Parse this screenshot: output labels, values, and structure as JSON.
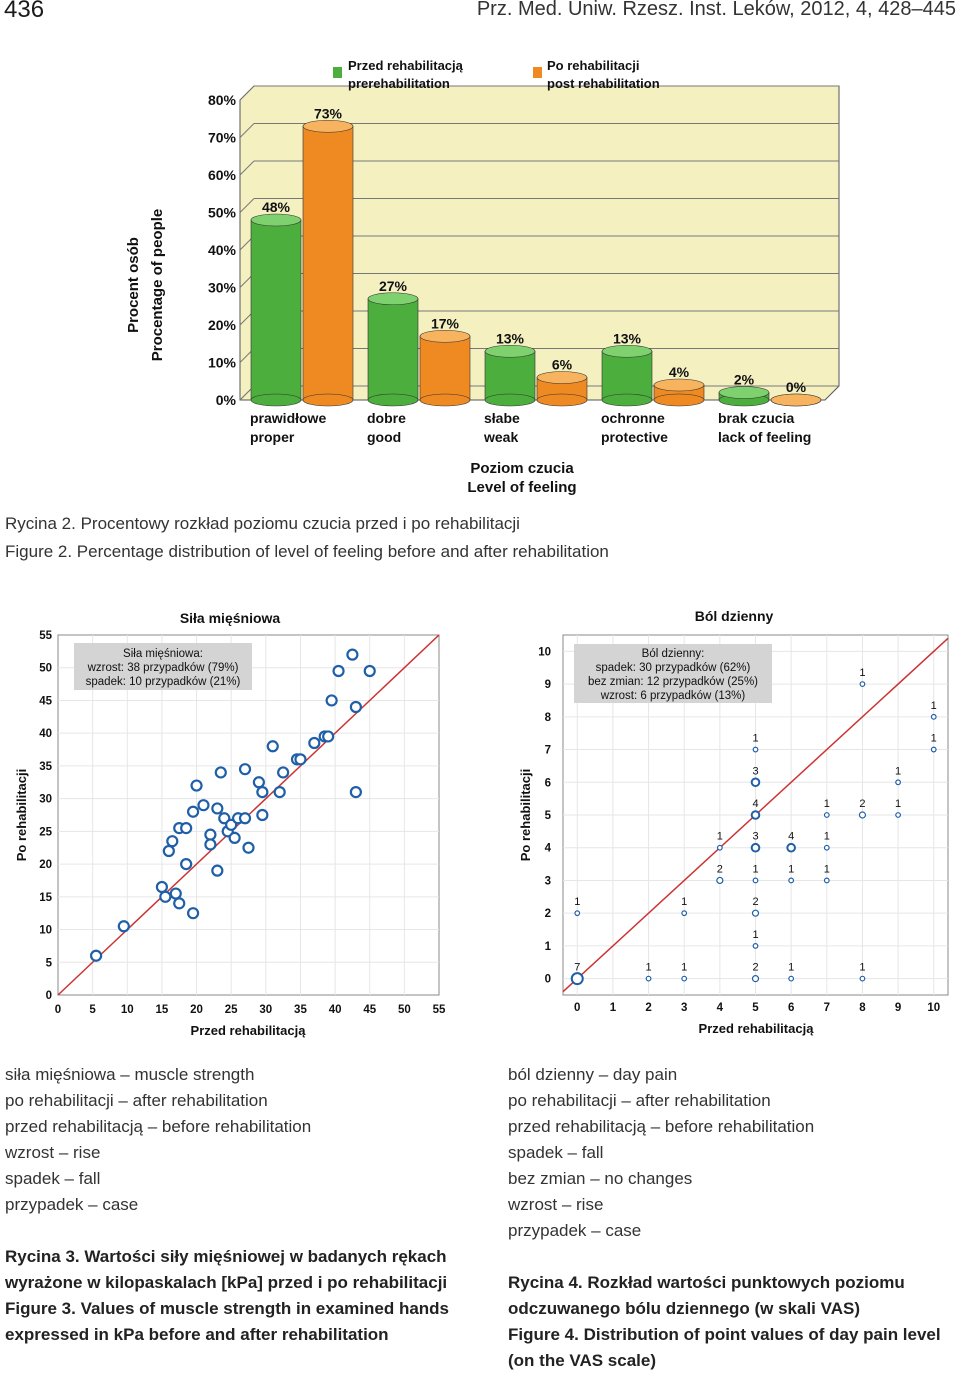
{
  "header": {
    "page_number": "436",
    "journal": "Prz. Med. Uniw. Rzesz. Inst. Leków, 2012, 4, 428–445"
  },
  "figure2": {
    "caption_pl": "Rycina 2. Procentowy rozkład poziomu czucia przed i po rehabilitacji",
    "caption_en": "Figure 2. Percentage distribution of level of feeling before and after rehabilitation"
  },
  "figure3": {
    "caption_lines": [
      "Rycina 3. Wartości siły mięśniowej w badanych rękach",
      "wyrażone w kilopaskalach [kPa] przed i po rehabilitacji",
      "Figure 3. Values of muscle strength in examined hands",
      "expressed in kPa before and after rehabilitation"
    ],
    "glossary": [
      "siła mięśniowa – muscle strength",
      "po rehabilitacji – after rehabilitation",
      "przed rehabilitacją – before rehabilitation",
      "wzrost – rise",
      "spadek – fall",
      "przypadek – case"
    ]
  },
  "figure4": {
    "caption_lines": [
      "Rycina 4. Rozkład wartości punktowych poziomu",
      "odczuwanego bólu dziennego (w skali VAS)",
      "Figure 4. Distribution of point values of day pain level",
      "(on the VAS scale)"
    ],
    "glossary": [
      "ból dzienny – day pain",
      "po rehabilitacji – after rehabilitation",
      "przed rehabilitacją – before rehabilitation",
      "spadek – fall",
      "bez zmian – no changes",
      "wzrost – rise",
      "przypadek – case"
    ]
  },
  "colors": {
    "green": "#4cae3c",
    "orange": "#ef8a22",
    "blue": "#1f5fa8",
    "red": "#cc3333",
    "panel": "#f5f0c0"
  },
  "chart_data": [
    {
      "type": "bar",
      "legend": [
        {
          "pl": "Przed rehabilitacją",
          "en": "prerehabilitation"
        },
        {
          "pl": "Po rehabilitacji",
          "en": "post rehabilitation"
        }
      ],
      "ylabel_pl": "Procent osób",
      "ylabel_en": "Procentage of people",
      "xlabel_pl": "Poziom czucia",
      "xlabel_en": "Level of feeling",
      "yticks": [
        "0%",
        "10%",
        "20%",
        "30%",
        "40%",
        "50%",
        "60%",
        "70%",
        "80%"
      ],
      "ylim": [
        0,
        80
      ],
      "categories": [
        {
          "pl": "prawidłowe",
          "en": "proper"
        },
        {
          "pl": "dobre",
          "en": "good"
        },
        {
          "pl": "słabe",
          "en": "weak"
        },
        {
          "pl": "ochronne",
          "en": "protective"
        },
        {
          "pl": "brak czucia",
          "en": "lack of feeling"
        }
      ],
      "series": [
        {
          "name": "Przed rehabilitacją",
          "values": [
            48,
            27,
            13,
            13,
            2
          ],
          "labels": [
            "48%",
            "27%",
            "13%",
            "13%",
            "2%"
          ]
        },
        {
          "name": "Po rehabilitacji",
          "values": [
            73,
            17,
            6,
            4,
            0
          ],
          "labels": [
            "73%",
            "17%",
            "6%",
            "4%",
            "0%"
          ]
        }
      ]
    },
    {
      "type": "scatter",
      "title": "Siła mięśniowa",
      "xlabel": "Przed rehabilitacją",
      "ylabel": "Po rehabilitacji",
      "xlim": [
        0,
        55
      ],
      "ylim": [
        0,
        55
      ],
      "ticks": [
        "0",
        "5",
        "10",
        "15",
        "20",
        "25",
        "30",
        "35",
        "40",
        "45",
        "50",
        "55"
      ],
      "annotation": [
        "Siła mięśniowa:",
        "wzrost: 38 przypadków (79%)",
        "spadek: 10 przypadków (21%)"
      ],
      "points": [
        [
          5.5,
          6
        ],
        [
          9.5,
          10.5
        ],
        [
          15,
          16.5
        ],
        [
          15.5,
          15
        ],
        [
          17,
          15.5
        ],
        [
          17.5,
          14
        ],
        [
          19.5,
          12.5
        ],
        [
          16,
          22
        ],
        [
          16.5,
          23.5
        ],
        [
          17.5,
          25.5
        ],
        [
          18.5,
          25.5
        ],
        [
          18.5,
          20
        ],
        [
          19.5,
          28
        ],
        [
          20,
          32
        ],
        [
          21,
          29
        ],
        [
          22,
          24.5
        ],
        [
          22,
          23
        ],
        [
          23,
          28.5
        ],
        [
          23,
          19
        ],
        [
          23.5,
          34
        ],
        [
          24,
          27
        ],
        [
          24.5,
          25
        ],
        [
          25,
          26
        ],
        [
          25.5,
          24
        ],
        [
          26,
          27
        ],
        [
          27,
          34.5
        ],
        [
          27,
          27
        ],
        [
          27.5,
          22.5
        ],
        [
          29,
          32.5
        ],
        [
          29.5,
          31
        ],
        [
          29.5,
          27.5
        ],
        [
          31,
          38
        ],
        [
          32,
          31
        ],
        [
          32.5,
          34
        ],
        [
          34.5,
          36
        ],
        [
          35,
          36
        ],
        [
          37,
          38.5
        ],
        [
          38.5,
          39.5
        ],
        [
          39,
          39.5
        ],
        [
          39.5,
          45
        ],
        [
          40.5,
          49.5
        ],
        [
          42.5,
          52
        ],
        [
          43,
          31
        ],
        [
          43,
          44
        ],
        [
          45,
          49.5
        ]
      ]
    },
    {
      "type": "scatter",
      "title": "Ból dzienny",
      "xlabel": "Przed rehabilitacją",
      "ylabel": "Po rehabilitacji",
      "xlim": [
        0,
        10
      ],
      "ylim": [
        0,
        10
      ],
      "ticks": [
        "0",
        "1",
        "2",
        "3",
        "4",
        "5",
        "6",
        "7",
        "8",
        "9",
        "10"
      ],
      "annotation": [
        "Ból dzienny:",
        "spadek: 30 przypadków (62%)",
        "bez zmian: 12 przypadków (25%)",
        "wzrost: 6 przypadków (13%)"
      ],
      "points": [
        {
          "x": 0,
          "y": 0,
          "n": "7"
        },
        {
          "x": 2,
          "y": 0,
          "n": "1"
        },
        {
          "x": 3,
          "y": 0,
          "n": "1"
        },
        {
          "x": 5,
          "y": 0,
          "n": "2"
        },
        {
          "x": 6,
          "y": 0,
          "n": "1"
        },
        {
          "x": 8,
          "y": 0,
          "n": "1"
        },
        {
          "x": 5,
          "y": 1,
          "n": "1"
        },
        {
          "x": 0,
          "y": 2,
          "n": "1"
        },
        {
          "x": 3,
          "y": 2,
          "n": "1"
        },
        {
          "x": 5,
          "y": 2,
          "n": "2"
        },
        {
          "x": 4,
          "y": 3,
          "n": "2"
        },
        {
          "x": 5,
          "y": 3,
          "n": "1"
        },
        {
          "x": 6,
          "y": 3,
          "n": "1"
        },
        {
          "x": 7,
          "y": 3,
          "n": "1"
        },
        {
          "x": 4,
          "y": 4,
          "n": "1"
        },
        {
          "x": 5,
          "y": 4,
          "n": "3"
        },
        {
          "x": 6,
          "y": 4,
          "n": "4"
        },
        {
          "x": 7,
          "y": 4,
          "n": "1"
        },
        {
          "x": 5,
          "y": 5,
          "n": "4"
        },
        {
          "x": 7,
          "y": 5,
          "n": "1"
        },
        {
          "x": 8,
          "y": 5,
          "n": "2"
        },
        {
          "x": 9,
          "y": 5,
          "n": "1"
        },
        {
          "x": 5,
          "y": 6,
          "n": "3"
        },
        {
          "x": 9,
          "y": 6,
          "n": "1"
        },
        {
          "x": 5,
          "y": 7,
          "n": "1"
        },
        {
          "x": 10,
          "y": 7,
          "n": "1"
        },
        {
          "x": 10,
          "y": 8,
          "n": "1"
        },
        {
          "x": 8,
          "y": 9,
          "n": "1"
        }
      ]
    }
  ]
}
